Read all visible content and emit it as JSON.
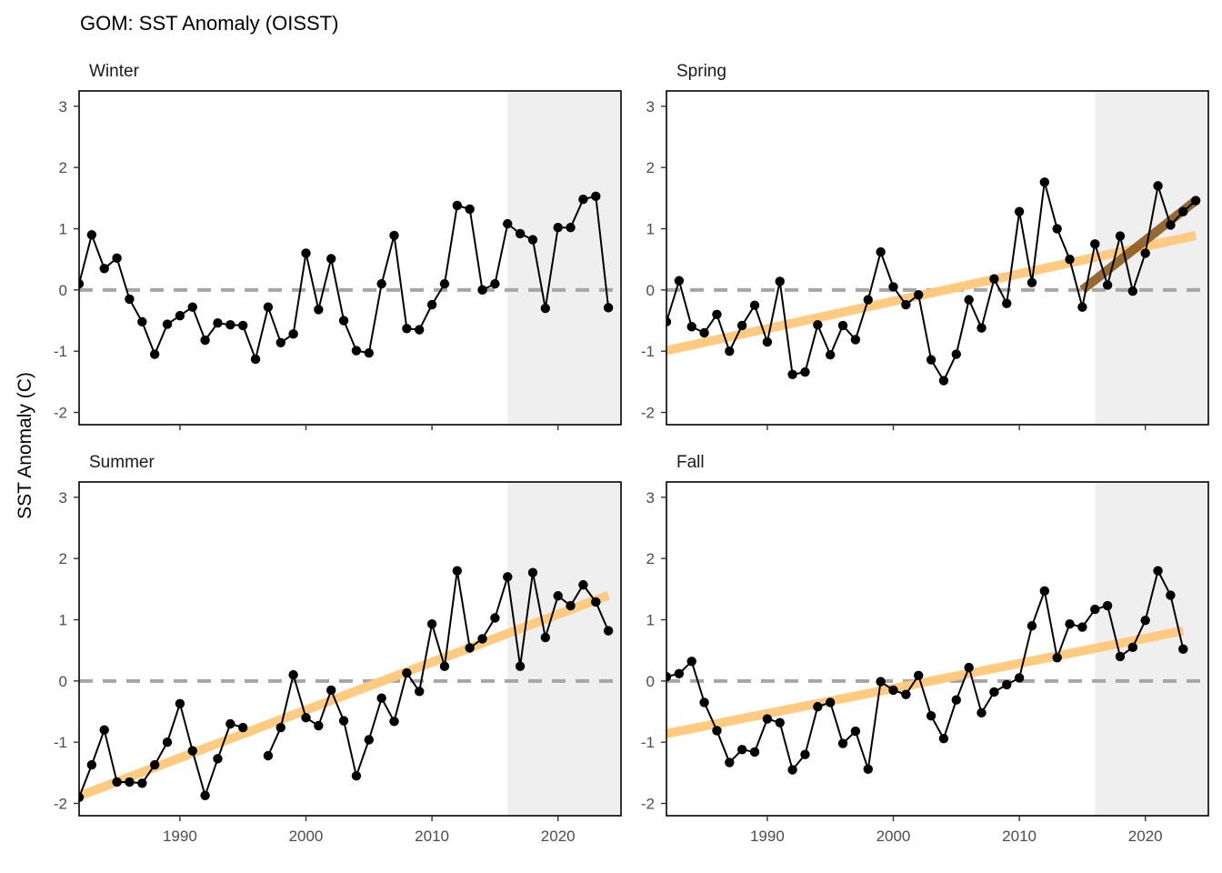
{
  "title": "GOM: SST Anomaly (OISST)",
  "ylabel": "SST Anomaly (C)",
  "colors": {
    "points": "#000000",
    "zero_line": "#a6a6a6",
    "shade": "#efefef",
    "trend_long": "#ffc87a",
    "trend_short": "#8b5a1e"
  },
  "chart_data": {
    "type": "line",
    "facets": [
      "Winter",
      "Spring",
      "Summer",
      "Fall"
    ],
    "xlim": [
      1982,
      2025
    ],
    "ylim": [
      -2.2,
      3.25
    ],
    "x_ticks": [
      1990,
      2000,
      2010,
      2020
    ],
    "y_ticks": [
      -2,
      -1,
      0,
      1,
      2,
      3
    ],
    "shaded_x_range": [
      2016,
      2025
    ],
    "panels": [
      {
        "name": "Winter",
        "points": [
          [
            1982,
            0.1
          ],
          [
            1983,
            0.9
          ],
          [
            1984,
            0.35
          ],
          [
            1985,
            0.52
          ],
          [
            1986,
            -0.15
          ],
          [
            1987,
            -0.52
          ],
          [
            1988,
            -1.05
          ],
          [
            1989,
            -0.56
          ],
          [
            1990,
            -0.42
          ],
          [
            1991,
            -0.28
          ],
          [
            1992,
            -0.82
          ],
          [
            1993,
            -0.54
          ],
          [
            1994,
            -0.57
          ],
          [
            1995,
            -0.58
          ],
          [
            1996,
            -1.13
          ],
          [
            1997,
            -0.28
          ],
          [
            1998,
            -0.86
          ],
          [
            1999,
            -0.72
          ],
          [
            2000,
            0.6
          ],
          [
            2001,
            -0.32
          ],
          [
            2002,
            0.51
          ],
          [
            2003,
            -0.5
          ],
          [
            2004,
            -0.99
          ],
          [
            2005,
            -1.03
          ],
          [
            2006,
            0.1
          ],
          [
            2007,
            0.89
          ],
          [
            2008,
            -0.63
          ],
          [
            2009,
            -0.65
          ],
          [
            2010,
            -0.24
          ],
          [
            2011,
            0.1
          ],
          [
            2012,
            1.38
          ],
          [
            2013,
            1.32
          ],
          [
            2014,
            0.0
          ],
          [
            2015,
            0.1
          ],
          [
            2016,
            1.08
          ],
          [
            2017,
            0.92
          ],
          [
            2018,
            0.82
          ],
          [
            2019,
            -0.3
          ],
          [
            2020,
            1.02
          ],
          [
            2021,
            1.02
          ],
          [
            2022,
            1.48
          ],
          [
            2023,
            1.53
          ],
          [
            2024,
            -0.29
          ]
        ],
        "trends": []
      },
      {
        "name": "Spring",
        "points": [
          [
            1982,
            -0.52
          ],
          [
            1983,
            0.15
          ],
          [
            1984,
            -0.6
          ],
          [
            1985,
            -0.7
          ],
          [
            1986,
            -0.4
          ],
          [
            1987,
            -1.0
          ],
          [
            1988,
            -0.58
          ],
          [
            1989,
            -0.25
          ],
          [
            1990,
            -0.85
          ],
          [
            1991,
            0.14
          ],
          [
            1992,
            -1.38
          ],
          [
            1993,
            -1.34
          ],
          [
            1994,
            -0.57
          ],
          [
            1995,
            -1.06
          ],
          [
            1996,
            -0.58
          ],
          [
            1997,
            -0.81
          ],
          [
            1998,
            -0.16
          ],
          [
            1999,
            0.62
          ],
          [
            2000,
            0.05
          ],
          [
            2001,
            -0.24
          ],
          [
            2002,
            -0.08
          ],
          [
            2003,
            -1.14
          ],
          [
            2004,
            -1.48
          ],
          [
            2005,
            -1.05
          ],
          [
            2006,
            -0.16
          ],
          [
            2007,
            -0.62
          ],
          [
            2008,
            0.18
          ],
          [
            2009,
            -0.22
          ],
          [
            2010,
            1.28
          ],
          [
            2011,
            0.12
          ],
          [
            2012,
            1.76
          ],
          [
            2013,
            1.0
          ],
          [
            2014,
            0.5
          ],
          [
            2015,
            -0.28
          ],
          [
            2016,
            0.75
          ],
          [
            2017,
            0.08
          ],
          [
            2018,
            0.88
          ],
          [
            2019,
            -0.02
          ],
          [
            2020,
            0.6
          ],
          [
            2021,
            1.7
          ],
          [
            2022,
            1.06
          ],
          [
            2023,
            1.28
          ],
          [
            2024,
            1.46
          ]
        ],
        "trends": [
          {
            "kind": "long",
            "x": [
              1982,
              2024
            ],
            "y": [
              -0.99,
              0.89
            ]
          },
          {
            "kind": "short",
            "x": [
              2015,
              2024
            ],
            "y": [
              0.0,
              1.46
            ]
          }
        ]
      },
      {
        "name": "Summer",
        "points": [
          [
            1982,
            -1.9
          ],
          [
            1983,
            -1.37
          ],
          [
            1984,
            -0.8
          ],
          [
            1985,
            -1.65
          ],
          [
            1986,
            -1.65
          ],
          [
            1987,
            -1.67
          ],
          [
            1988,
            -1.37
          ],
          [
            1989,
            -1.0
          ],
          [
            1990,
            -0.37
          ],
          [
            1991,
            -1.14
          ],
          [
            1992,
            -1.87
          ],
          [
            1993,
            -1.27
          ],
          [
            1994,
            -0.7
          ],
          [
            1995,
            -0.76
          ],
          [
            1996,
            null
          ],
          [
            1997,
            -1.22
          ],
          [
            1998,
            -0.76
          ],
          [
            1999,
            0.1
          ],
          [
            2000,
            -0.6
          ],
          [
            2001,
            -0.73
          ],
          [
            2002,
            -0.15
          ],
          [
            2003,
            -0.65
          ],
          [
            2004,
            -1.55
          ],
          [
            2005,
            -0.96
          ],
          [
            2006,
            -0.28
          ],
          [
            2007,
            -0.66
          ],
          [
            2008,
            0.13
          ],
          [
            2009,
            -0.17
          ],
          [
            2010,
            0.93
          ],
          [
            2011,
            0.24
          ],
          [
            2012,
            1.8
          ],
          [
            2013,
            0.54
          ],
          [
            2014,
            0.69
          ],
          [
            2015,
            1.03
          ],
          [
            2016,
            1.7
          ],
          [
            2017,
            0.24
          ],
          [
            2018,
            1.77
          ],
          [
            2019,
            0.71
          ],
          [
            2020,
            1.39
          ],
          [
            2021,
            1.23
          ],
          [
            2022,
            1.57
          ],
          [
            2023,
            1.29
          ],
          [
            2024,
            0.82
          ]
        ],
        "trends": [
          {
            "kind": "long",
            "x": [
              1982,
              2024
            ],
            "y": [
              -1.88,
              1.4
            ]
          }
        ]
      },
      {
        "name": "Fall",
        "points": [
          [
            1982,
            0.07
          ],
          [
            1983,
            0.12
          ],
          [
            1984,
            0.32
          ],
          [
            1985,
            -0.35
          ],
          [
            1986,
            -0.81
          ],
          [
            1987,
            -1.33
          ],
          [
            1988,
            -1.12
          ],
          [
            1989,
            -1.16
          ],
          [
            1990,
            -0.62
          ],
          [
            1991,
            -0.68
          ],
          [
            1992,
            -1.45
          ],
          [
            1993,
            -1.2
          ],
          [
            1994,
            -0.42
          ],
          [
            1995,
            -0.35
          ],
          [
            1996,
            -1.02
          ],
          [
            1997,
            -0.82
          ],
          [
            1998,
            -1.44
          ],
          [
            1999,
            -0.01
          ],
          [
            2000,
            -0.15
          ],
          [
            2001,
            -0.22
          ],
          [
            2002,
            0.09
          ],
          [
            2003,
            -0.57
          ],
          [
            2004,
            -0.94
          ],
          [
            2005,
            -0.31
          ],
          [
            2006,
            0.22
          ],
          [
            2007,
            -0.52
          ],
          [
            2008,
            -0.18
          ],
          [
            2009,
            -0.06
          ],
          [
            2010,
            0.05
          ],
          [
            2011,
            0.9
          ],
          [
            2012,
            1.47
          ],
          [
            2013,
            0.38
          ],
          [
            2014,
            0.93
          ],
          [
            2015,
            0.88
          ],
          [
            2016,
            1.17
          ],
          [
            2017,
            1.23
          ],
          [
            2018,
            0.4
          ],
          [
            2019,
            0.55
          ],
          [
            2020,
            0.99
          ],
          [
            2021,
            1.8
          ],
          [
            2022,
            1.4
          ],
          [
            2023,
            0.52
          ]
        ],
        "trends": [
          {
            "kind": "long",
            "x": [
              1982,
              2023
            ],
            "y": [
              -0.86,
              0.82
            ]
          }
        ]
      }
    ]
  }
}
